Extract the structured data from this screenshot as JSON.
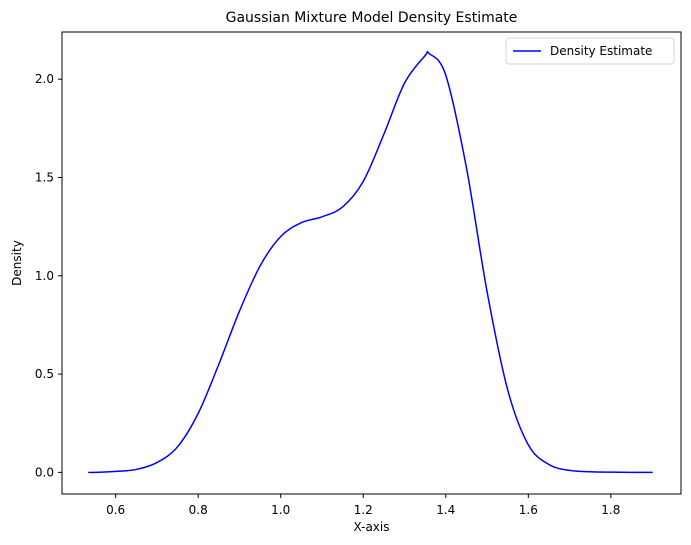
{
  "chart_data": {
    "type": "line",
    "title": "Gaussian Mixture Model Density Estimate",
    "xlabel": "X-axis",
    "ylabel": "Density",
    "xlim": [
      0.47,
      1.97
    ],
    "ylim": [
      -0.11,
      2.24
    ],
    "xticks": [
      0.6,
      0.8,
      1.0,
      1.2,
      1.4,
      1.6,
      1.8
    ],
    "xtick_labels": [
      "0.6",
      "0.8",
      "1.0",
      "1.2",
      "1.4",
      "1.6",
      "1.8"
    ],
    "yticks": [
      0.0,
      0.5,
      1.0,
      1.5,
      2.0
    ],
    "ytick_labels": [
      "0.0",
      "0.5",
      "1.0",
      "1.5",
      "2.0"
    ],
    "grid": false,
    "legend_position": "upper right",
    "series": [
      {
        "name": "Density Estimate",
        "color": "#0000ff",
        "x": [
          0.535,
          0.55,
          0.6,
          0.65,
          0.7,
          0.75,
          0.8,
          0.85,
          0.9,
          0.95,
          1.0,
          1.05,
          1.1,
          1.15,
          1.2,
          1.25,
          1.3,
          1.35,
          1.36,
          1.4,
          1.45,
          1.5,
          1.55,
          1.6,
          1.65,
          1.7,
          1.75,
          1.8,
          1.85,
          1.9
        ],
        "y": [
          0.0,
          0.0,
          0.005,
          0.015,
          0.05,
          0.13,
          0.3,
          0.55,
          0.82,
          1.05,
          1.2,
          1.27,
          1.3,
          1.35,
          1.48,
          1.72,
          1.98,
          2.12,
          2.13,
          2.02,
          1.55,
          0.92,
          0.42,
          0.14,
          0.04,
          0.01,
          0.003,
          0.001,
          0.0,
          0.0
        ]
      }
    ]
  }
}
